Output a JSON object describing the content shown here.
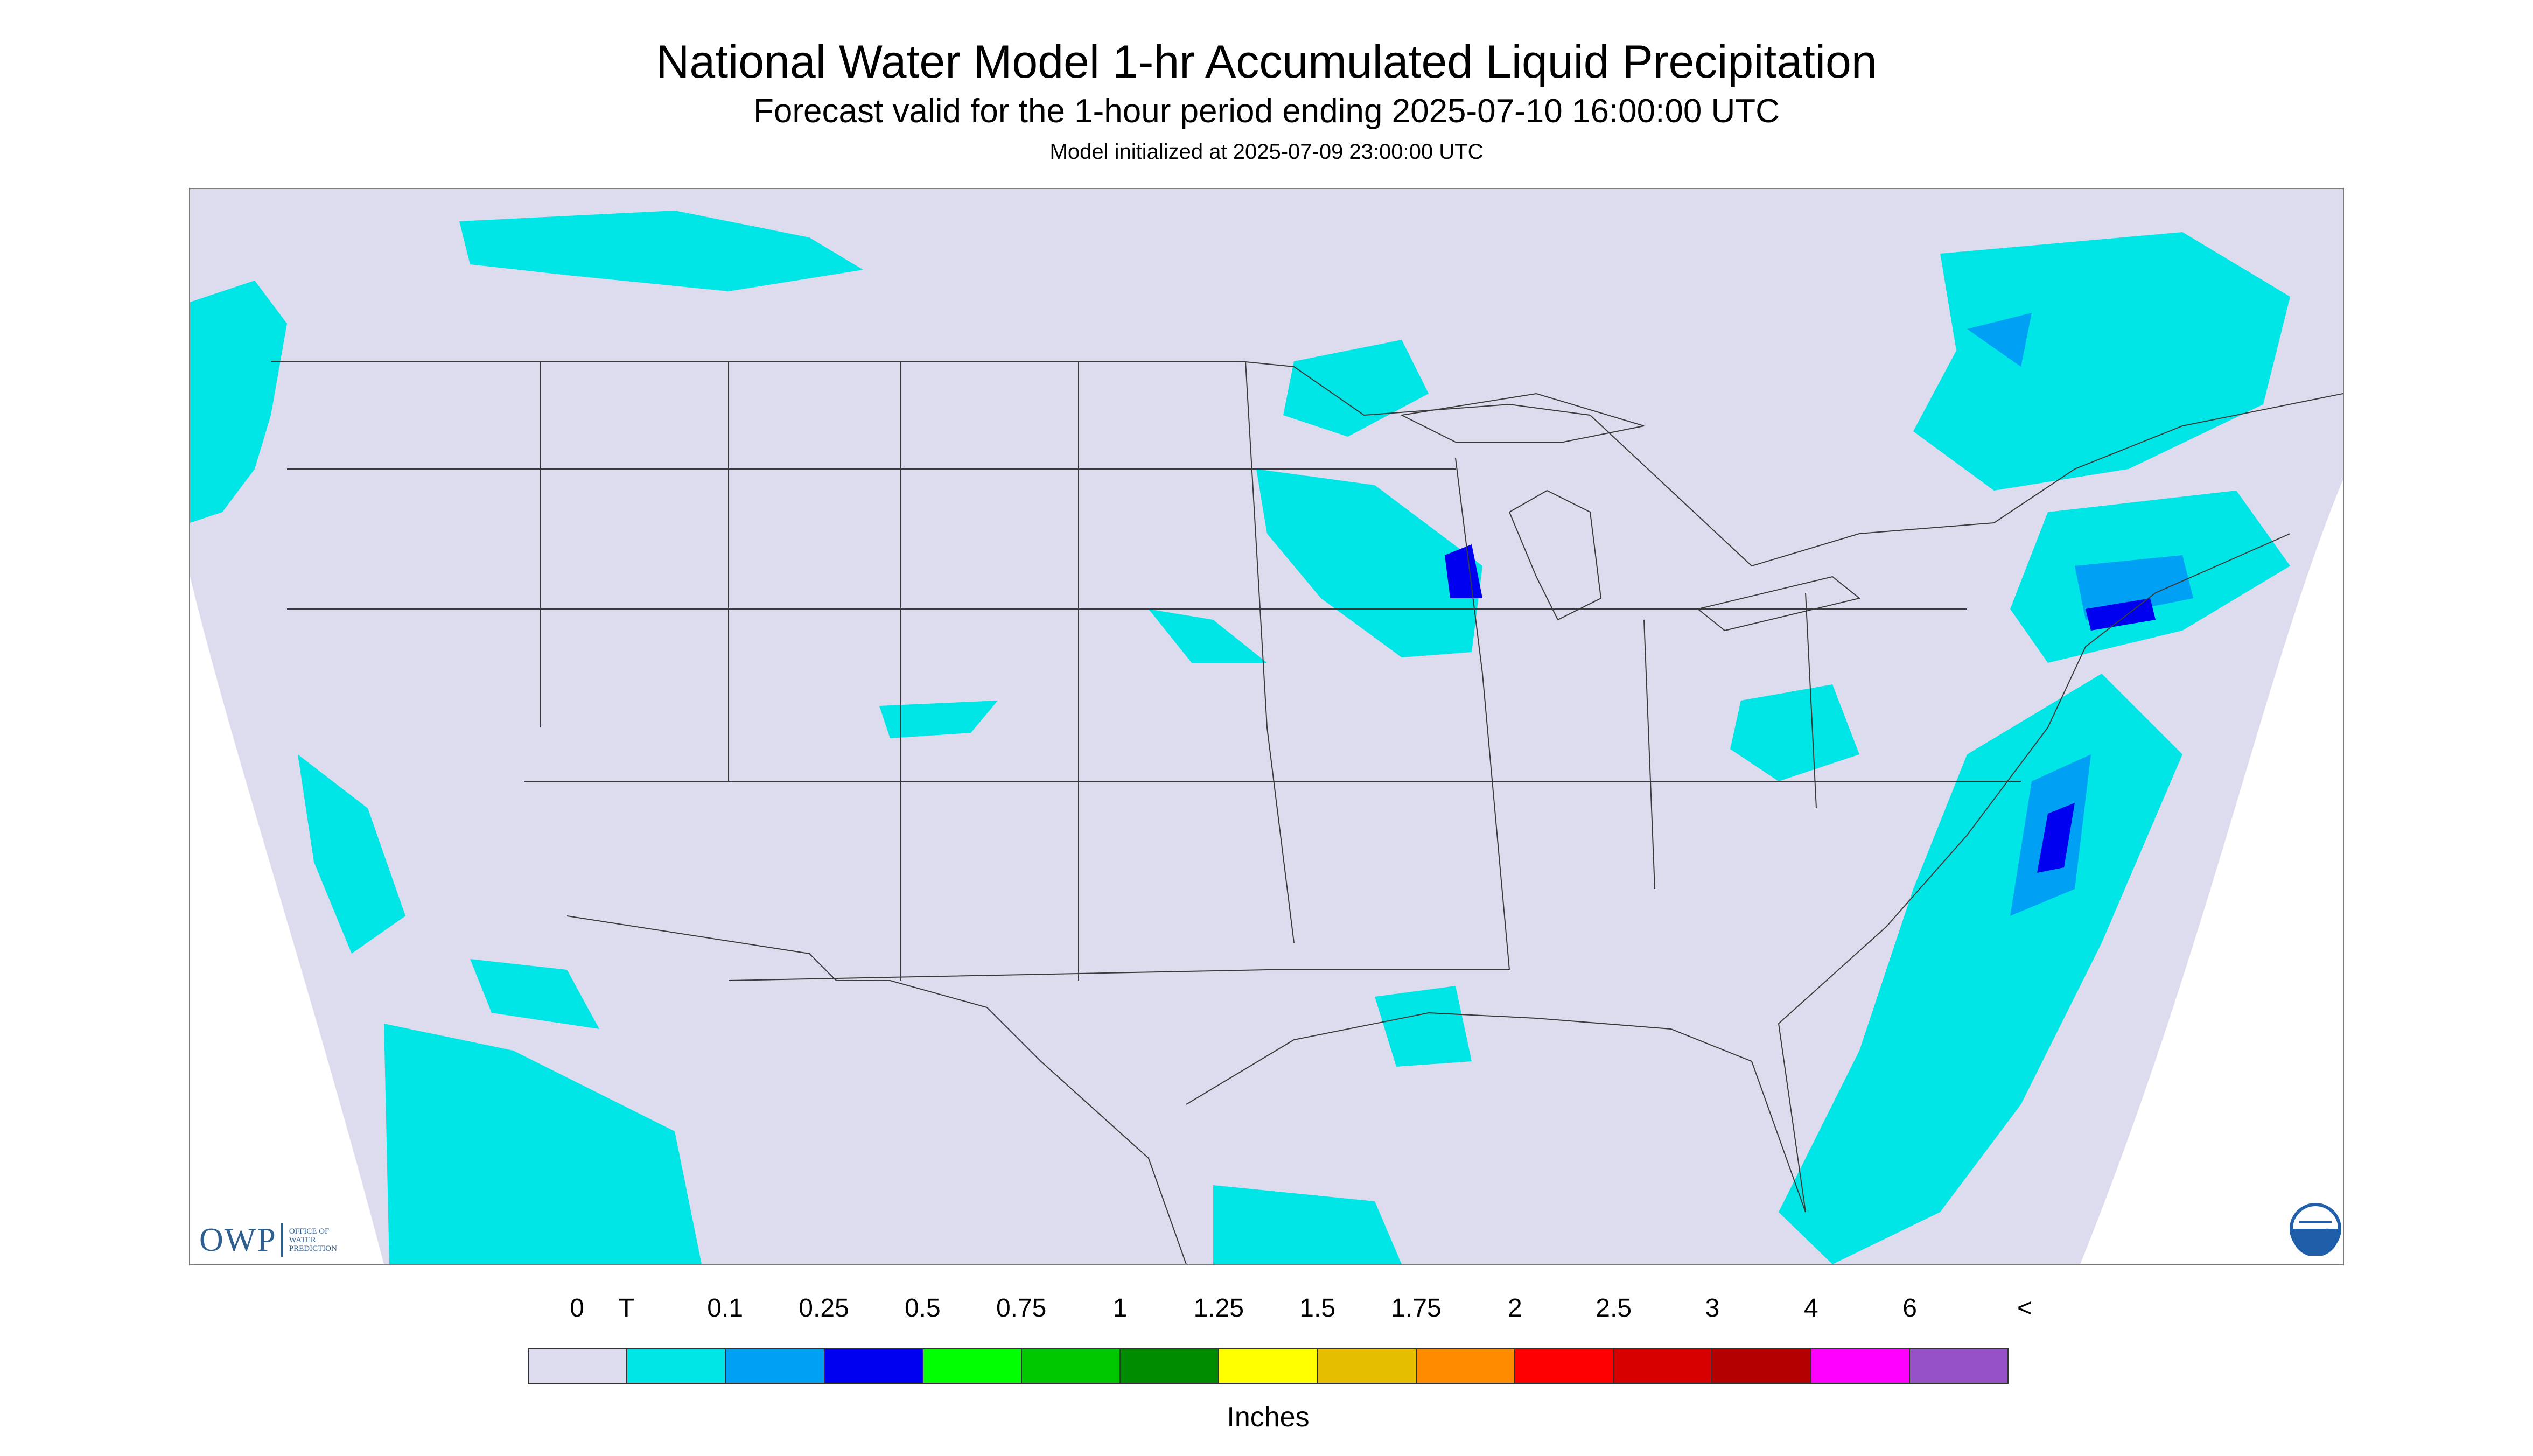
{
  "header": {
    "title": "National Water Model 1-hr Accumulated Liquid Precipitation",
    "subtitle": "Forecast valid for the 1-hour period ending 2025-07-10 16:00:00 UTC",
    "init": "Model initialized at 2025-07-09 23:00:00 UTC"
  },
  "map": {
    "background_color": "#dddcee",
    "precip_colors": {
      "trace": "#00e5e5",
      "light": "#00a0f5",
      "moderate": "#0000f0",
      "heavy_green": "#00ee00"
    }
  },
  "logos": {
    "owp_mark": "OWP",
    "owp_lines": [
      "OFFICE OF",
      "WATER",
      "PREDICTION"
    ],
    "noaa_icon": "noaa-logo-icon"
  },
  "legend": {
    "units": "Inches",
    "ticks": [
      "0",
      "T",
      "0.1",
      "0.25",
      "0.5",
      "0.75",
      "1",
      "1.25",
      "1.5",
      "1.75",
      "2",
      "2.5",
      "3",
      "4",
      "6",
      "<"
    ],
    "colors": [
      "#dddcee",
      "#00e5e5",
      "#00a0f5",
      "#0000f0",
      "#00ff00",
      "#00c800",
      "#008c00",
      "#ffff00",
      "#e6be00",
      "#ff8c00",
      "#ff0000",
      "#d70000",
      "#b40000",
      "#ff00ff",
      "#9650c8"
    ]
  }
}
